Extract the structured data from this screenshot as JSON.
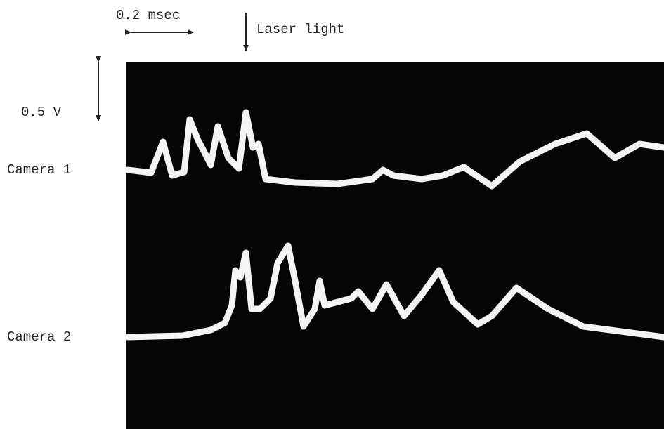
{
  "time_scale": "0.2 msec",
  "event": "Laser light",
  "voltage_scale": "0.5 V",
  "traces": [
    {
      "label": "Camera 1"
    },
    {
      "label": "Camera 2"
    }
  ]
}
